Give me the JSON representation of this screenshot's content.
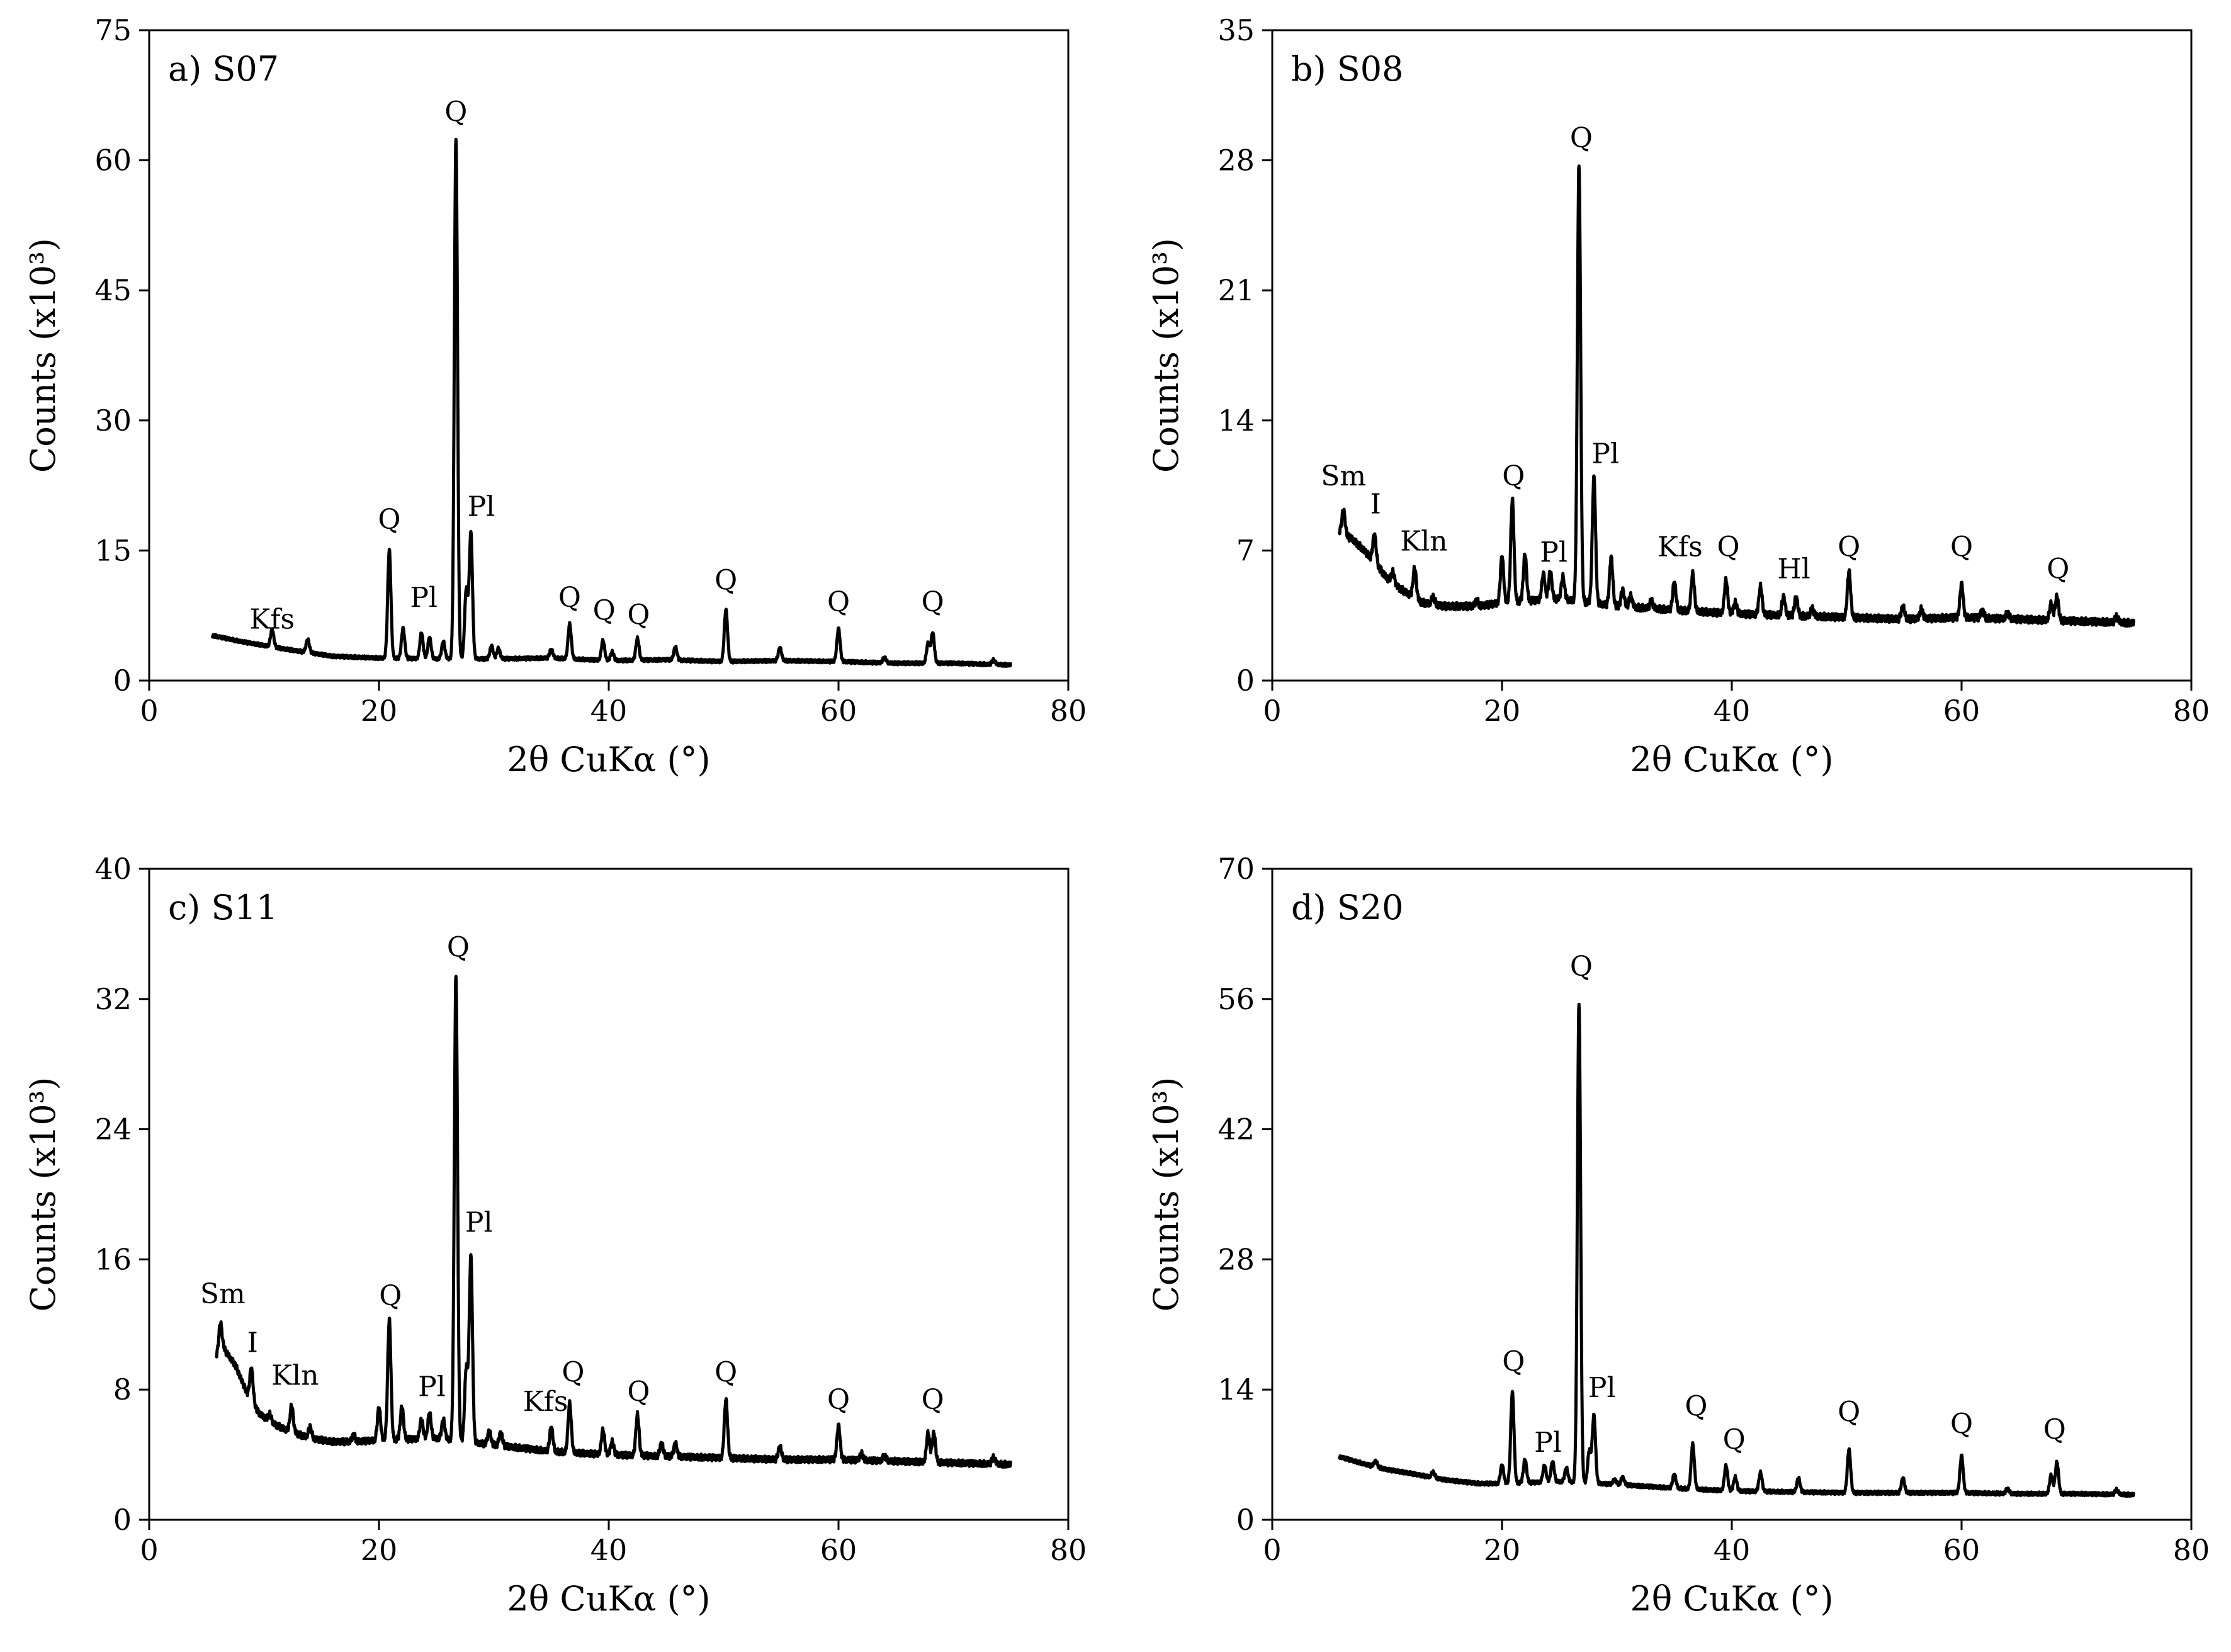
{
  "figure": {
    "panel_count": 4,
    "text_color": "#000000",
    "background": "#ffffff"
  },
  "chart_data": [
    {
      "type": "line",
      "title": "a) S07",
      "xlabel": "2θ CuKα (°)",
      "ylabel": "Counts (x10³)",
      "xlim": [
        0,
        80
      ],
      "ylim": [
        0,
        75
      ],
      "xticks": [
        0,
        20,
        40,
        60,
        80
      ],
      "yticks": [
        0,
        15,
        30,
        45,
        60,
        75
      ],
      "baseline": [
        [
          5.5,
          5.2
        ],
        [
          8,
          4.5
        ],
        [
          12,
          3.6
        ],
        [
          16,
          2.8
        ],
        [
          20,
          2.6
        ],
        [
          25,
          2.5
        ],
        [
          30,
          2.5
        ],
        [
          35,
          2.6
        ],
        [
          40,
          2.3
        ],
        [
          45,
          2.4
        ],
        [
          50,
          2.2
        ],
        [
          55,
          2.3
        ],
        [
          60,
          2.2
        ],
        [
          65,
          2.0
        ],
        [
          70,
          2.0
        ],
        [
          75,
          1.8
        ]
      ],
      "peaks": [
        [
          10.7,
          2.0
        ],
        [
          13.8,
          1.5
        ],
        [
          20.9,
          12.5
        ],
        [
          22.1,
          3.5
        ],
        [
          23.7,
          3.0
        ],
        [
          24.4,
          2.5
        ],
        [
          25.6,
          2.0
        ],
        [
          26.7,
          60.0
        ],
        [
          27.6,
          8.0
        ],
        [
          28.0,
          14.5
        ],
        [
          29.8,
          1.5
        ],
        [
          30.4,
          1.2
        ],
        [
          35.0,
          1.0
        ],
        [
          36.6,
          4.0
        ],
        [
          39.5,
          2.3
        ],
        [
          40.3,
          1.0
        ],
        [
          42.5,
          2.5
        ],
        [
          45.8,
          1.5
        ],
        [
          50.2,
          6.0
        ],
        [
          54.9,
          1.5
        ],
        [
          60.0,
          3.8
        ],
        [
          64.0,
          0.6
        ],
        [
          67.8,
          2.3
        ],
        [
          68.2,
          3.5
        ],
        [
          73.5,
          0.5
        ]
      ],
      "annotations": [
        {
          "text": "Kfs",
          "x": 10.7,
          "y": 6.0
        },
        {
          "text": "Q",
          "x": 20.9,
          "y": 17.5
        },
        {
          "text": "Pl",
          "x": 23.9,
          "y": 8.5
        },
        {
          "text": "Q",
          "x": 26.7,
          "y": 64.5
        },
        {
          "text": "Pl",
          "x": 28.9,
          "y": 19.0
        },
        {
          "text": "Q",
          "x": 36.6,
          "y": 8.5
        },
        {
          "text": "Q",
          "x": 39.6,
          "y": 7.0
        },
        {
          "text": "Q",
          "x": 42.6,
          "y": 6.5
        },
        {
          "text": "Q",
          "x": 50.2,
          "y": 10.5
        },
        {
          "text": "Q",
          "x": 60.0,
          "y": 8.0
        },
        {
          "text": "Q",
          "x": 68.2,
          "y": 8.0
        }
      ]
    },
    {
      "type": "line",
      "title": "b) S08",
      "xlabel": "2θ CuKα (°)",
      "ylabel": "Counts (x10³)",
      "xlim": [
        0,
        80
      ],
      "ylim": [
        0,
        35
      ],
      "xticks": [
        0,
        20,
        40,
        60,
        80
      ],
      "yticks": [
        0,
        7,
        14,
        21,
        28,
        35
      ],
      "baseline": [
        [
          5.8,
          8.0
        ],
        [
          7,
          7.6
        ],
        [
          8,
          7.0
        ],
        [
          9,
          6.3
        ],
        [
          10,
          5.5
        ],
        [
          11,
          5.0
        ],
        [
          12,
          4.6
        ],
        [
          13,
          4.2
        ],
        [
          15,
          4.0
        ],
        [
          18,
          4.0
        ],
        [
          20,
          4.2
        ],
        [
          25,
          4.4
        ],
        [
          30,
          4.0
        ],
        [
          35,
          3.8
        ],
        [
          40,
          3.6
        ],
        [
          45,
          3.5
        ],
        [
          50,
          3.4
        ],
        [
          55,
          3.3
        ],
        [
          60,
          3.4
        ],
        [
          65,
          3.3
        ],
        [
          70,
          3.2
        ],
        [
          75,
          3.1
        ]
      ],
      "peaks": [
        [
          6.2,
          1.3
        ],
        [
          8.9,
          1.5
        ],
        [
          10.5,
          0.6
        ],
        [
          12.4,
          1.6
        ],
        [
          14.0,
          0.4
        ],
        [
          17.8,
          0.3
        ],
        [
          20.0,
          2.5
        ],
        [
          20.9,
          5.5
        ],
        [
          22.0,
          2.5
        ],
        [
          23.6,
          1.4
        ],
        [
          24.2,
          1.5
        ],
        [
          25.3,
          1.2
        ],
        [
          26.7,
          23.5
        ],
        [
          28.0,
          6.8
        ],
        [
          29.5,
          2.6
        ],
        [
          30.5,
          0.9
        ],
        [
          31.2,
          0.6
        ],
        [
          33.0,
          0.4
        ],
        [
          35.0,
          1.5
        ],
        [
          36.6,
          2.0
        ],
        [
          39.5,
          1.8
        ],
        [
          40.3,
          0.6
        ],
        [
          42.5,
          1.5
        ],
        [
          44.5,
          1.0
        ],
        [
          45.6,
          1.0
        ],
        [
          47.0,
          0.4
        ],
        [
          50.2,
          2.5
        ],
        [
          54.9,
          0.7
        ],
        [
          56.5,
          0.5
        ],
        [
          60.0,
          1.8
        ],
        [
          61.8,
          0.4
        ],
        [
          64.0,
          0.3
        ],
        [
          67.8,
          0.9
        ],
        [
          68.3,
          1.3
        ],
        [
          73.5,
          0.3
        ]
      ],
      "annotations": [
        {
          "text": "Sm",
          "x": 6.2,
          "y": 10.5
        },
        {
          "text": "I",
          "x": 9.0,
          "y": 9.0
        },
        {
          "text": "Kln",
          "x": 13.2,
          "y": 7.0
        },
        {
          "text": "Q",
          "x": 21.0,
          "y": 10.5
        },
        {
          "text": "Pl",
          "x": 24.5,
          "y": 6.4
        },
        {
          "text": "Q",
          "x": 26.9,
          "y": 28.7
        },
        {
          "text": "Pl",
          "x": 29.0,
          "y": 11.7
        },
        {
          "text": "Kfs",
          "x": 35.5,
          "y": 6.7
        },
        {
          "text": "Q",
          "x": 39.7,
          "y": 6.7
        },
        {
          "text": "Hl",
          "x": 45.4,
          "y": 5.5
        },
        {
          "text": "Q",
          "x": 50.2,
          "y": 6.7
        },
        {
          "text": "Q",
          "x": 60.0,
          "y": 6.7
        },
        {
          "text": "Q",
          "x": 68.4,
          "y": 5.5
        }
      ]
    },
    {
      "type": "line",
      "title": "c) S11",
      "xlabel": "2θ CuKα (°)",
      "ylabel": "Counts (x10³)",
      "xlim": [
        0,
        80
      ],
      "ylim": [
        0,
        40
      ],
      "xticks": [
        0,
        20,
        40,
        60,
        80
      ],
      "yticks": [
        0,
        8,
        16,
        24,
        32,
        40
      ],
      "baseline": [
        [
          5.8,
          10.0
        ],
        [
          6.5,
          10.5
        ],
        [
          7.5,
          9.5
        ],
        [
          8.5,
          7.8
        ],
        [
          9.5,
          6.6
        ],
        [
          10.5,
          6.0
        ],
        [
          12,
          5.5
        ],
        [
          14,
          5.0
        ],
        [
          16,
          4.8
        ],
        [
          18,
          4.8
        ],
        [
          20,
          4.9
        ],
        [
          25,
          5.0
        ],
        [
          30,
          4.6
        ],
        [
          35,
          4.2
        ],
        [
          40,
          4.0
        ],
        [
          45,
          3.9
        ],
        [
          50,
          3.8
        ],
        [
          55,
          3.7
        ],
        [
          60,
          3.7
        ],
        [
          65,
          3.6
        ],
        [
          70,
          3.5
        ],
        [
          75,
          3.4
        ]
      ],
      "peaks": [
        [
          6.2,
          1.8
        ],
        [
          8.9,
          2.0
        ],
        [
          10.5,
          0.5
        ],
        [
          12.4,
          1.6
        ],
        [
          14.0,
          0.7
        ],
        [
          17.8,
          0.4
        ],
        [
          20.0,
          2.0
        ],
        [
          20.9,
          7.4
        ],
        [
          22.0,
          2.0
        ],
        [
          23.7,
          1.2
        ],
        [
          24.4,
          1.6
        ],
        [
          25.6,
          1.2
        ],
        [
          26.7,
          28.6
        ],
        [
          27.6,
          4.5
        ],
        [
          28.0,
          11.4
        ],
        [
          29.6,
          0.8
        ],
        [
          30.6,
          0.8
        ],
        [
          35.0,
          1.5
        ],
        [
          36.6,
          3.0
        ],
        [
          39.5,
          1.5
        ],
        [
          40.3,
          0.8
        ],
        [
          42.5,
          2.5
        ],
        [
          44.6,
          0.8
        ],
        [
          45.8,
          0.8
        ],
        [
          50.2,
          3.6
        ],
        [
          54.9,
          0.8
        ],
        [
          60.0,
          2.1
        ],
        [
          62.0,
          0.4
        ],
        [
          64.0,
          0.3
        ],
        [
          67.8,
          1.8
        ],
        [
          68.3,
          1.8
        ],
        [
          73.5,
          0.4
        ]
      ],
      "annotations": [
        {
          "text": "Sm",
          "x": 6.4,
          "y": 13.3
        },
        {
          "text": "I",
          "x": 9.0,
          "y": 10.3
        },
        {
          "text": "Kln",
          "x": 12.7,
          "y": 8.3
        },
        {
          "text": "Q",
          "x": 21.0,
          "y": 13.2
        },
        {
          "text": "Pl",
          "x": 24.6,
          "y": 7.6
        },
        {
          "text": "Q",
          "x": 26.9,
          "y": 34.6
        },
        {
          "text": "Pl",
          "x": 28.7,
          "y": 17.7
        },
        {
          "text": "Kfs",
          "x": 34.5,
          "y": 6.7
        },
        {
          "text": "Q",
          "x": 36.9,
          "y": 8.5
        },
        {
          "text": "Q",
          "x": 42.6,
          "y": 7.3
        },
        {
          "text": "Q",
          "x": 50.2,
          "y": 8.5
        },
        {
          "text": "Q",
          "x": 60.0,
          "y": 6.8
        },
        {
          "text": "Q",
          "x": 68.2,
          "y": 6.8
        }
      ]
    },
    {
      "type": "line",
      "title": "d) S20",
      "xlabel": "2θ CuKα (°)",
      "ylabel": "Counts (x10³)",
      "xlim": [
        0,
        80
      ],
      "ylim": [
        0,
        70
      ],
      "xticks": [
        0,
        20,
        40,
        60,
        80
      ],
      "yticks": [
        0,
        14,
        28,
        42,
        56,
        70
      ],
      "baseline": [
        [
          5.8,
          6.8
        ],
        [
          8,
          6.0
        ],
        [
          10,
          5.4
        ],
        [
          12,
          5.0
        ],
        [
          15,
          4.3
        ],
        [
          18,
          3.9
        ],
        [
          20,
          3.9
        ],
        [
          25,
          4.1
        ],
        [
          30,
          3.8
        ],
        [
          35,
          3.4
        ],
        [
          40,
          3.1
        ],
        [
          45,
          3.0
        ],
        [
          50,
          2.9
        ],
        [
          55,
          2.9
        ],
        [
          60,
          2.9
        ],
        [
          65,
          2.8
        ],
        [
          70,
          2.8
        ],
        [
          75,
          2.7
        ]
      ],
      "peaks": [
        [
          9.0,
          0.6
        ],
        [
          14.0,
          0.6
        ],
        [
          20.0,
          2.0
        ],
        [
          20.9,
          9.8
        ],
        [
          22.0,
          2.5
        ],
        [
          23.7,
          1.8
        ],
        [
          24.4,
          2.2
        ],
        [
          25.6,
          1.5
        ],
        [
          26.7,
          51.5
        ],
        [
          27.6,
          3.5
        ],
        [
          28.0,
          7.3
        ],
        [
          29.8,
          0.5
        ],
        [
          30.5,
          0.8
        ],
        [
          35.0,
          1.5
        ],
        [
          36.6,
          4.8
        ],
        [
          39.5,
          2.7
        ],
        [
          40.3,
          1.5
        ],
        [
          42.5,
          2.0
        ],
        [
          45.8,
          1.5
        ],
        [
          50.2,
          4.7
        ],
        [
          54.9,
          1.6
        ],
        [
          60.0,
          4.0
        ],
        [
          64.0,
          0.5
        ],
        [
          67.8,
          2.0
        ],
        [
          68.3,
          3.4
        ],
        [
          73.5,
          0.5
        ]
      ],
      "annotations": [
        {
          "text": "Q",
          "x": 21.0,
          "y": 16.0
        },
        {
          "text": "Pl",
          "x": 24.0,
          "y": 7.3
        },
        {
          "text": "Q",
          "x": 26.9,
          "y": 58.5
        },
        {
          "text": "Pl",
          "x": 28.7,
          "y": 13.2
        },
        {
          "text": "Q",
          "x": 36.9,
          "y": 11.2
        },
        {
          "text": "Q",
          "x": 40.2,
          "y": 7.6
        },
        {
          "text": "Q",
          "x": 50.2,
          "y": 10.6
        },
        {
          "text": "Q",
          "x": 60.0,
          "y": 9.3
        },
        {
          "text": "Q",
          "x": 68.1,
          "y": 8.7
        }
      ]
    }
  ]
}
